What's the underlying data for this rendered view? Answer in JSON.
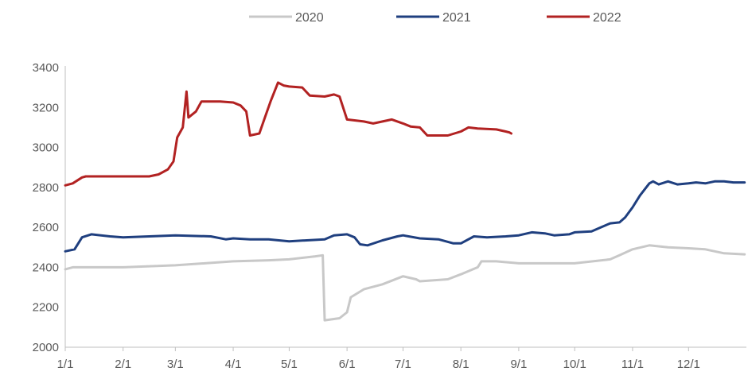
{
  "chart_data": {
    "type": "line",
    "ylim": [
      2000,
      3400
    ],
    "y_ticks": [
      "2000",
      "2200",
      "2400",
      "2600",
      "2800",
      "3000",
      "3200",
      "3400"
    ],
    "x_ticks": [
      "1/1",
      "2/1",
      "3/1",
      "4/1",
      "5/1",
      "6/1",
      "7/1",
      "8/1",
      "9/1",
      "10/1",
      "11/1",
      "12/1"
    ],
    "grid": false,
    "legend_position": "top-center",
    "series": [
      {
        "name": "2020",
        "color": "#c8c8c8",
        "points": [
          [
            "1/1",
            2390
          ],
          [
            "1/5",
            2400
          ],
          [
            "2/1",
            2400
          ],
          [
            "3/1",
            2410
          ],
          [
            "4/1",
            2430
          ],
          [
            "4/20",
            2435
          ],
          [
            "5/1",
            2440
          ],
          [
            "5/15",
            2455
          ],
          [
            "5/19",
            2460
          ],
          [
            "5/20",
            2135
          ],
          [
            "5/28",
            2145
          ],
          [
            "6/1",
            2175
          ],
          [
            "6/3",
            2250
          ],
          [
            "6/10",
            2290
          ],
          [
            "6/20",
            2315
          ],
          [
            "7/1",
            2355
          ],
          [
            "7/8",
            2340
          ],
          [
            "7/10",
            2330
          ],
          [
            "7/25",
            2340
          ],
          [
            "8/1",
            2365
          ],
          [
            "8/10",
            2400
          ],
          [
            "8/12",
            2430
          ],
          [
            "8/20",
            2430
          ],
          [
            "9/1",
            2420
          ],
          [
            "9/20",
            2420
          ],
          [
            "10/1",
            2420
          ],
          [
            "10/20",
            2440
          ],
          [
            "10/25",
            2460
          ],
          [
            "11/1",
            2490
          ],
          [
            "11/10",
            2510
          ],
          [
            "11/20",
            2500
          ],
          [
            "12/1",
            2495
          ],
          [
            "12/10",
            2490
          ],
          [
            "12/20",
            2470
          ],
          [
            "12/31",
            2465
          ]
        ]
      },
      {
        "name": "2021",
        "color": "#1f3f7f",
        "points": [
          [
            "1/1",
            2480
          ],
          [
            "1/6",
            2490
          ],
          [
            "1/10",
            2550
          ],
          [
            "1/15",
            2565
          ],
          [
            "1/25",
            2555
          ],
          [
            "2/1",
            2550
          ],
          [
            "3/1",
            2560
          ],
          [
            "3/20",
            2555
          ],
          [
            "3/28",
            2540
          ],
          [
            "4/1",
            2545
          ],
          [
            "4/10",
            2540
          ],
          [
            "4/20",
            2540
          ],
          [
            "5/1",
            2530
          ],
          [
            "5/20",
            2540
          ],
          [
            "5/25",
            2560
          ],
          [
            "6/1",
            2565
          ],
          [
            "6/5",
            2550
          ],
          [
            "6/8",
            2515
          ],
          [
            "6/12",
            2510
          ],
          [
            "6/20",
            2535
          ],
          [
            "6/28",
            2555
          ],
          [
            "7/1",
            2560
          ],
          [
            "7/10",
            2545
          ],
          [
            "7/20",
            2540
          ],
          [
            "7/28",
            2520
          ],
          [
            "8/1",
            2520
          ],
          [
            "8/8",
            2555
          ],
          [
            "8/15",
            2550
          ],
          [
            "8/25",
            2555
          ],
          [
            "9/1",
            2560
          ],
          [
            "9/8",
            2575
          ],
          [
            "9/15",
            2570
          ],
          [
            "9/20",
            2560
          ],
          [
            "9/28",
            2565
          ],
          [
            "10/1",
            2575
          ],
          [
            "10/10",
            2580
          ],
          [
            "10/15",
            2600
          ],
          [
            "10/20",
            2620
          ],
          [
            "10/25",
            2625
          ],
          [
            "10/28",
            2650
          ],
          [
            "11/1",
            2700
          ],
          [
            "11/5",
            2760
          ],
          [
            "11/10",
            2820
          ],
          [
            "11/12",
            2830
          ],
          [
            "11/15",
            2815
          ],
          [
            "11/20",
            2830
          ],
          [
            "11/25",
            2815
          ],
          [
            "12/1",
            2820
          ],
          [
            "12/5",
            2825
          ],
          [
            "12/10",
            2820
          ],
          [
            "12/15",
            2830
          ],
          [
            "12/20",
            2830
          ],
          [
            "12/25",
            2825
          ],
          [
            "12/31",
            2825
          ]
        ]
      },
      {
        "name": "2022",
        "color": "#b22222",
        "points": [
          [
            "1/1",
            2810
          ],
          [
            "1/5",
            2820
          ],
          [
            "1/10",
            2850
          ],
          [
            "1/12",
            2855
          ],
          [
            "2/1",
            2855
          ],
          [
            "2/15",
            2855
          ],
          [
            "2/20",
            2865
          ],
          [
            "2/25",
            2890
          ],
          [
            "2/28",
            2930
          ],
          [
            "3/2",
            3050
          ],
          [
            "3/5",
            3100
          ],
          [
            "3/7",
            3280
          ],
          [
            "3/8",
            3150
          ],
          [
            "3/12",
            3180
          ],
          [
            "3/15",
            3230
          ],
          [
            "3/25",
            3230
          ],
          [
            "4/1",
            3225
          ],
          [
            "4/5",
            3210
          ],
          [
            "4/8",
            3180
          ],
          [
            "4/10",
            3060
          ],
          [
            "4/15",
            3070
          ],
          [
            "4/18",
            3150
          ],
          [
            "4/21",
            3230
          ],
          [
            "4/25",
            3325
          ],
          [
            "4/28",
            3310
          ],
          [
            "5/1",
            3305
          ],
          [
            "5/8",
            3300
          ],
          [
            "5/12",
            3260
          ],
          [
            "5/20",
            3255
          ],
          [
            "5/25",
            3265
          ],
          [
            "5/28",
            3255
          ],
          [
            "6/1",
            3140
          ],
          [
            "6/10",
            3130
          ],
          [
            "6/15",
            3120
          ],
          [
            "6/20",
            3130
          ],
          [
            "6/25",
            3140
          ],
          [
            "7/1",
            3120
          ],
          [
            "7/5",
            3105
          ],
          [
            "7/10",
            3100
          ],
          [
            "7/14",
            3060
          ],
          [
            "7/25",
            3060
          ],
          [
            "8/1",
            3080
          ],
          [
            "8/5",
            3100
          ],
          [
            "8/10",
            3095
          ],
          [
            "8/20",
            3090
          ],
          [
            "8/25",
            3080
          ],
          [
            "8/27",
            3075
          ],
          [
            "8/28",
            3070
          ]
        ]
      }
    ]
  }
}
